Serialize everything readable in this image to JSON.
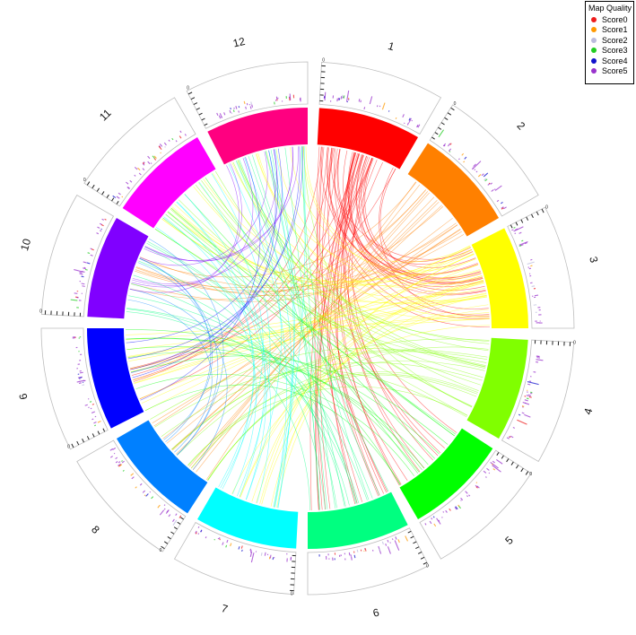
{
  "chart_data": {
    "type": "chord",
    "legend": {
      "title": "Map Quality",
      "placement": "top-right",
      "entries": [
        {
          "label": "Score0",
          "color": "#ee1c1c"
        },
        {
          "label": "Score1",
          "color": "#ff9900"
        },
        {
          "label": "Score2",
          "color": "#bbbbdd"
        },
        {
          "label": "Score3",
          "color": "#22cc22"
        },
        {
          "label": "Score4",
          "color": "#1111cc"
        },
        {
          "label": "Score5",
          "color": "#9933cc"
        }
      ]
    },
    "sectors": [
      {
        "label": "1",
        "color": "#ff0000"
      },
      {
        "label": "2",
        "color": "#ff8000"
      },
      {
        "label": "3",
        "color": "#ffff00"
      },
      {
        "label": "4",
        "color": "#80ff00"
      },
      {
        "label": "5",
        "color": "#00ff00"
      },
      {
        "label": "6",
        "color": "#00ff80"
      },
      {
        "label": "7",
        "color": "#00ffff"
      },
      {
        "label": "8",
        "color": "#0080ff"
      },
      {
        "label": "9",
        "color": "#0000ff"
      },
      {
        "label": "10",
        "color": "#8000ff"
      },
      {
        "label": "11",
        "color": "#ff00ff"
      },
      {
        "label": "12",
        "color": "#ff0080"
      }
    ],
    "axis_tick_label": "0",
    "links": [
      {
        "from": 1,
        "to": 3,
        "count": 22
      },
      {
        "from": 1,
        "to": 6,
        "count": 14
      },
      {
        "from": 1,
        "to": 5,
        "count": 10
      },
      {
        "from": 1,
        "to": 9,
        "count": 6
      },
      {
        "from": 2,
        "to": 8,
        "count": 12
      },
      {
        "from": 2,
        "to": 10,
        "count": 8
      },
      {
        "from": 3,
        "to": 9,
        "count": 14
      },
      {
        "from": 3,
        "to": 11,
        "count": 10
      },
      {
        "from": 3,
        "to": 7,
        "count": 10
      },
      {
        "from": 3,
        "to": 12,
        "count": 8
      },
      {
        "from": 4,
        "to": 8,
        "count": 12
      },
      {
        "from": 4,
        "to": 11,
        "count": 8
      },
      {
        "from": 4,
        "to": 12,
        "count": 6
      },
      {
        "from": 5,
        "to": 9,
        "count": 8
      },
      {
        "from": 5,
        "to": 11,
        "count": 6
      },
      {
        "from": 6,
        "to": 10,
        "count": 10
      },
      {
        "from": 6,
        "to": 12,
        "count": 8
      },
      {
        "from": 7,
        "to": 11,
        "count": 8
      },
      {
        "from": 7,
        "to": 12,
        "count": 6
      },
      {
        "from": 8,
        "to": 10,
        "count": 6
      },
      {
        "from": 9,
        "to": 12,
        "count": 6
      },
      {
        "from": 10,
        "to": 12,
        "count": 8
      }
    ]
  }
}
